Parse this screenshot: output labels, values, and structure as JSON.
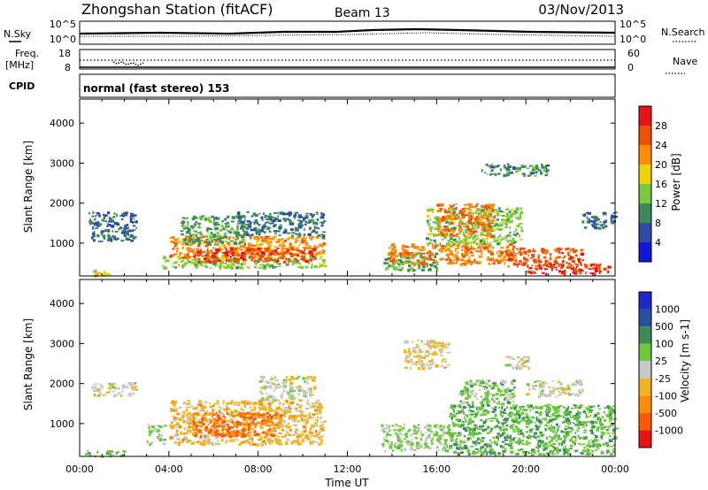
{
  "header": {
    "title": "Zhongshan Station (fitACF)",
    "beam": "Beam 13",
    "date": "03/Nov/2013"
  },
  "nsky_panel": {
    "left_label": "N.Sky",
    "left_ticks": [
      "10^5",
      "10^0"
    ],
    "right_label": "N.Search",
    "right_ticks": [
      "10^5",
      "10^0"
    ]
  },
  "freq_panel": {
    "left_label_1": "Freq.",
    "left_label_2": "[MHz]",
    "left_ticks": [
      "18",
      "8"
    ],
    "right_label": "Nave",
    "right_ticks": [
      "60",
      "0"
    ]
  },
  "cpid": {
    "label": "CPID",
    "text": "normal (fast stereo) 153"
  },
  "colors": {
    "power": [
      "#1414dc",
      "#2c4ca8",
      "#3a8a5a",
      "#7cc840",
      "#f0d200",
      "#ff8c00",
      "#f05000",
      "#e61414"
    ],
    "velocity": [
      "#e61414",
      "#ff5a00",
      "#ff8c00",
      "#f0b41e",
      "#c8c8c8",
      "#6ec83c",
      "#3c8c5a",
      "#2850a0",
      "#1e28c8"
    ]
  },
  "chart_data": [
    {
      "type": "heatmap",
      "title": "",
      "xlabel": "",
      "ylabel": "Slant Range [km]",
      "x_ticks": [
        "00:00",
        "04:00",
        "08:00",
        "12:00",
        "16:00",
        "20:00",
        "00:00"
      ],
      "xlim_hours": [
        0,
        24
      ],
      "y_ticks": [
        1000,
        2000,
        3000,
        4000
      ],
      "ylim": [
        180,
        4600
      ],
      "colorbar": {
        "label": "Power [dB]",
        "ticks": [
          "4",
          "8",
          "12",
          "16",
          "20",
          "24",
          "28"
        ],
        "range": [
          0,
          32
        ]
      },
      "regions": [
        {
          "x": [
            0.3,
            1.3
          ],
          "y": [
            200,
            330
          ],
          "value": 18
        },
        {
          "x": [
            0.4,
            2.5
          ],
          "y": [
            1050,
            1800
          ],
          "value": 8
        },
        {
          "x": [
            3.7,
            11.0
          ],
          "y": [
            400,
            700
          ],
          "value": 14
        },
        {
          "x": [
            4.0,
            10.9
          ],
          "y": [
            650,
            1200
          ],
          "value": 22
        },
        {
          "x": [
            4.5,
            7.5
          ],
          "y": [
            1000,
            1700
          ],
          "value": 11
        },
        {
          "x": [
            5.0,
            10.5
          ],
          "y": [
            550,
            900
          ],
          "value": 27
        },
        {
          "x": [
            7.0,
            11.0
          ],
          "y": [
            1200,
            1800
          ],
          "value": 9
        },
        {
          "x": [
            13.6,
            16.0
          ],
          "y": [
            350,
            800
          ],
          "value": 12
        },
        {
          "x": [
            13.8,
            19.5
          ],
          "y": [
            500,
            1000
          ],
          "value": 23
        },
        {
          "x": [
            15.5,
            19.8
          ],
          "y": [
            1000,
            1900
          ],
          "value": 14
        },
        {
          "x": [
            16.0,
            18.5
          ],
          "y": [
            1200,
            2000
          ],
          "value": 24
        },
        {
          "x": [
            19.0,
            22.5
          ],
          "y": [
            450,
            900
          ],
          "value": 26
        },
        {
          "x": [
            20.0,
            23.8
          ],
          "y": [
            250,
            500
          ],
          "value": 28
        },
        {
          "x": [
            22.5,
            24.0
          ],
          "y": [
            1400,
            1800
          ],
          "value": 8
        },
        {
          "x": [
            18.0,
            21.0
          ],
          "y": [
            2700,
            3000
          ],
          "value": 10
        }
      ]
    },
    {
      "type": "heatmap",
      "title": "",
      "xlabel": "Time UT",
      "ylabel": "Slant Range [km]",
      "x_ticks": [
        "00:00",
        "04:00",
        "08:00",
        "12:00",
        "16:00",
        "20:00",
        "00:00"
      ],
      "xlim_hours": [
        0,
        24
      ],
      "y_ticks": [
        1000,
        2000,
        3000,
        4000
      ],
      "ylim": [
        180,
        4600
      ],
      "colorbar": {
        "label": "Velocity [m s-1]",
        "ticks": [
          "1000",
          "500",
          "100",
          "25",
          "-25",
          "-100",
          "-500",
          "-1000"
        ],
        "range": [
          -1200,
          1200
        ]
      },
      "regions": [
        {
          "x": [
            0.2,
            2.0
          ],
          "y": [
            200,
            350
          ],
          "value": 300
        },
        {
          "x": [
            0.5,
            2.5
          ],
          "y": [
            1700,
            2050
          ],
          "value": 0
        },
        {
          "x": [
            3.0,
            3.8
          ],
          "y": [
            500,
            1000
          ],
          "value": 200
        },
        {
          "x": [
            4.0,
            10.9
          ],
          "y": [
            500,
            1600
          ],
          "value": -250
        },
        {
          "x": [
            5.0,
            9.0
          ],
          "y": [
            700,
            1300
          ],
          "value": -700
        },
        {
          "x": [
            8.0,
            10.5
          ],
          "y": [
            1600,
            2200
          ],
          "value": 0
        },
        {
          "x": [
            13.5,
            16.5
          ],
          "y": [
            350,
            1000
          ],
          "value": 200
        },
        {
          "x": [
            16.5,
            24.0
          ],
          "y": [
            250,
            1500
          ],
          "value": 350
        },
        {
          "x": [
            17.0,
            19.5
          ],
          "y": [
            1500,
            2100
          ],
          "value": 250
        },
        {
          "x": [
            20.0,
            22.5
          ],
          "y": [
            1700,
            2100
          ],
          "value": 0
        },
        {
          "x": [
            14.5,
            16.5
          ],
          "y": [
            2400,
            3100
          ],
          "value": -150
        },
        {
          "x": [
            19.0,
            20.2
          ],
          "y": [
            2400,
            2700
          ],
          "value": 0
        }
      ]
    }
  ]
}
